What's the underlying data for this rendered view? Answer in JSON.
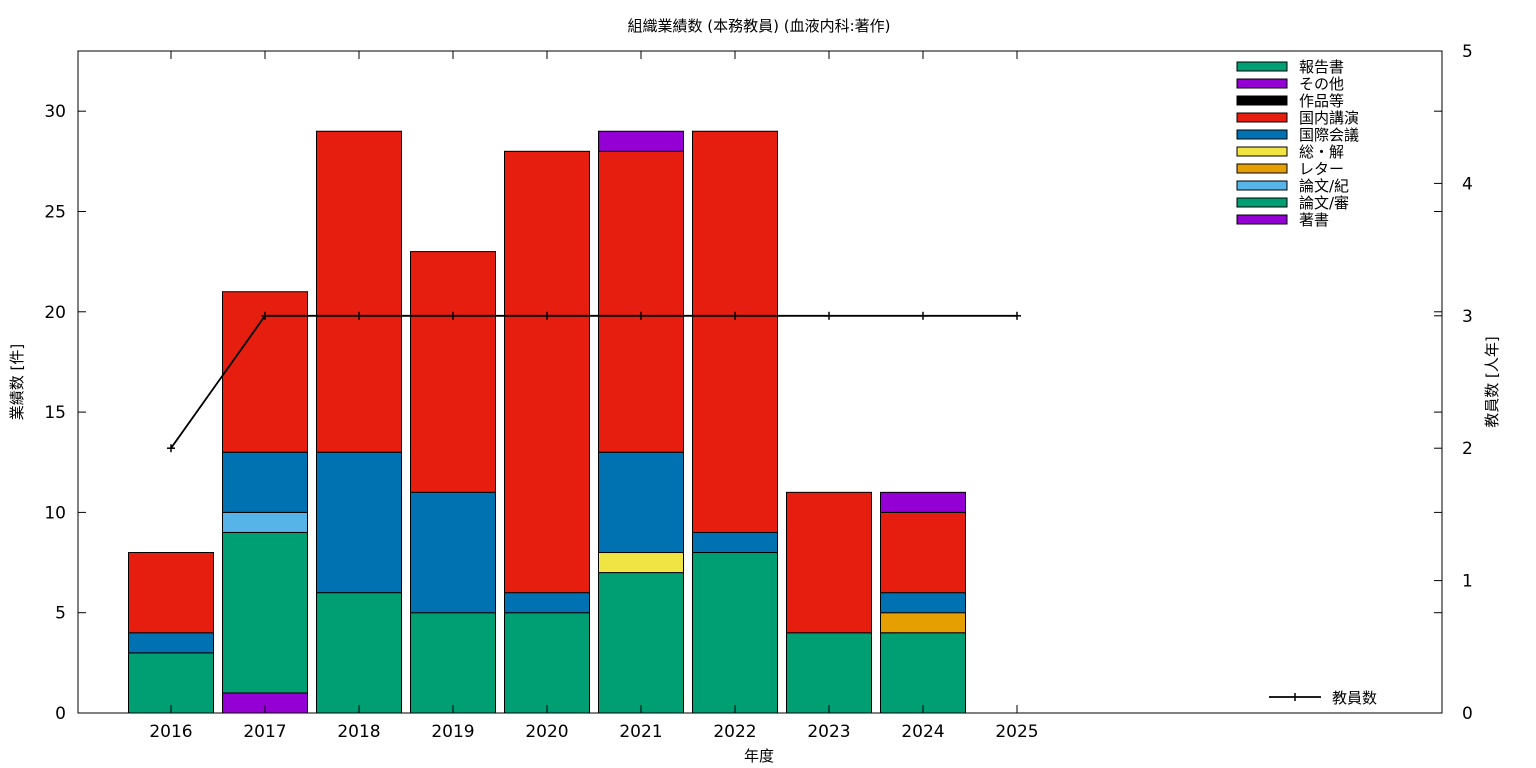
{
  "chart_data": {
    "type": "bar",
    "stacked": true,
    "title": "組織業績数 (本務教員) (血液内科:著作)",
    "xlabel": "年度",
    "ylabel": "業績数 [件]",
    "y2label": "教員数 [人年]",
    "categories": [
      "2016",
      "2017",
      "2018",
      "2019",
      "2020",
      "2021",
      "2022",
      "2023",
      "2024",
      "2025"
    ],
    "ylim": [
      0,
      33
    ],
    "yticks": [
      0,
      5,
      10,
      15,
      20,
      25,
      30
    ],
    "y2lim": [
      0,
      5
    ],
    "y2ticks": [
      0,
      1,
      2,
      3,
      4,
      5
    ],
    "legend_position": "top-right",
    "series": [
      {
        "name": "著書",
        "color": "#9400d3",
        "values": [
          0,
          1,
          0,
          0,
          0,
          0,
          0,
          0,
          0,
          0
        ]
      },
      {
        "name": "論文/審",
        "color": "#009e73",
        "values": [
          3,
          8,
          6,
          5,
          5,
          7,
          8,
          4,
          4,
          0
        ]
      },
      {
        "name": "論文/紀",
        "color": "#56b4e9",
        "values": [
          0,
          1,
          0,
          0,
          0,
          0,
          0,
          0,
          0,
          0
        ]
      },
      {
        "name": "レター",
        "color": "#e69f00",
        "values": [
          0,
          0,
          0,
          0,
          0,
          0,
          0,
          0,
          1,
          0
        ]
      },
      {
        "name": "総・解",
        "color": "#f0e442",
        "values": [
          0,
          0,
          0,
          0,
          0,
          1,
          0,
          0,
          0,
          0
        ]
      },
      {
        "name": "国際会議",
        "color": "#0072b2",
        "values": [
          1,
          3,
          7,
          6,
          1,
          5,
          1,
          0,
          1,
          0
        ]
      },
      {
        "name": "国内講演",
        "color": "#e51e10",
        "values": [
          4,
          8,
          16,
          12,
          22,
          15,
          20,
          7,
          4,
          0
        ]
      },
      {
        "name": "作品等",
        "color": "#000000",
        "values": [
          0,
          0,
          0,
          0,
          0,
          0,
          0,
          0,
          0,
          0
        ]
      },
      {
        "name": "その他",
        "color": "#9400d3",
        "values": [
          0,
          0,
          0,
          0,
          0,
          1,
          0,
          0,
          1,
          0
        ]
      },
      {
        "name": "報告書",
        "color": "#009e73",
        "values": [
          0,
          0,
          0,
          0,
          0,
          0,
          0,
          0,
          0,
          0
        ]
      }
    ],
    "line_series": {
      "name": "教員数",
      "axis": "y2",
      "color": "#000000",
      "values": [
        2,
        3,
        3,
        3,
        3,
        3,
        3,
        3,
        3,
        3
      ]
    }
  }
}
